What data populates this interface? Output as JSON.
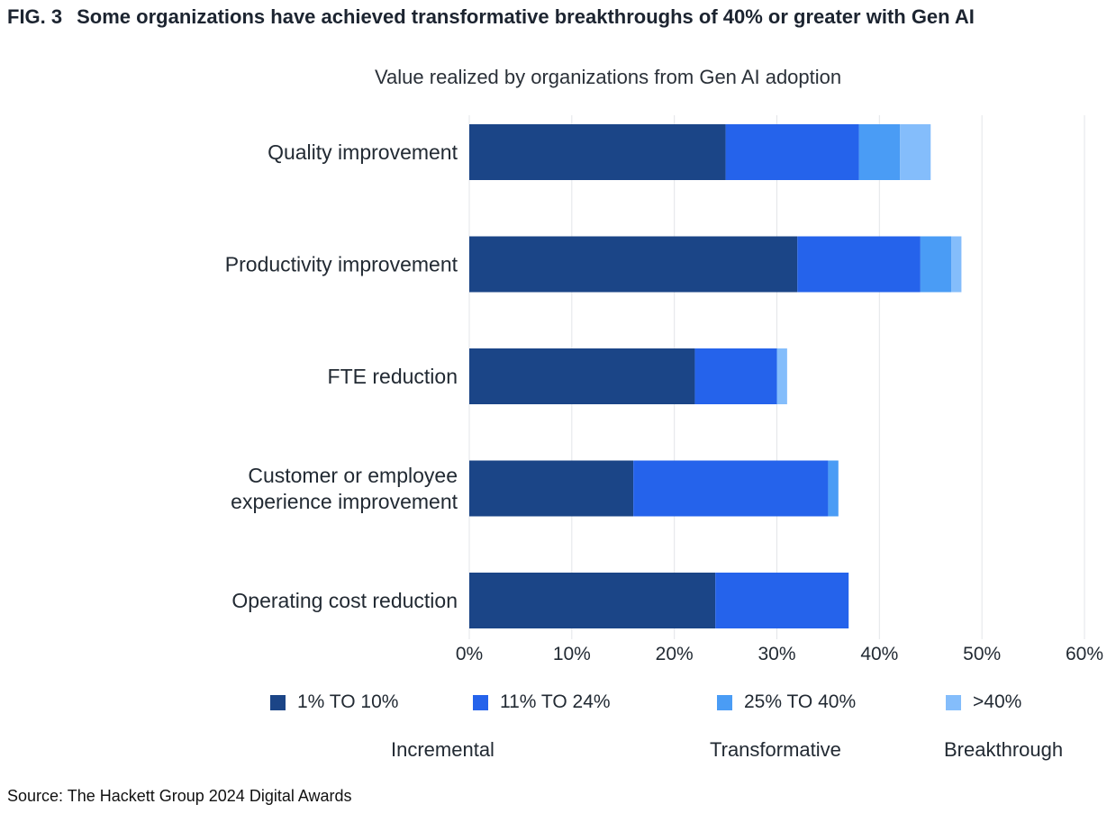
{
  "figure": {
    "label": "FIG. 3",
    "title": "Some organizations have achieved transformative breakthroughs of 40% or greater with Gen AI"
  },
  "chart_data": {
    "type": "bar",
    "orientation": "horizontal",
    "stacked": true,
    "title": "Value realized by organizations from Gen AI adoption",
    "xlabel": "",
    "ylabel": "",
    "xlim": [
      0,
      60
    ],
    "ticks": [
      "0%",
      "10%",
      "20%",
      "30%",
      "40%",
      "50%",
      "60%"
    ],
    "tick_values": [
      0,
      10,
      20,
      30,
      40,
      50,
      60
    ],
    "grid": true,
    "categories": [
      [
        "Quality improvement"
      ],
      [
        "Productivity improvement"
      ],
      [
        "FTE reduction"
      ],
      [
        "Customer or employee",
        "experience improvement"
      ],
      [
        "Operating cost reduction"
      ]
    ],
    "series": [
      {
        "name": "1% TO 10%",
        "color": "#1b4587",
        "values": [
          25,
          32,
          22,
          16,
          24
        ]
      },
      {
        "name": "11% TO 24%",
        "color": "#2563eb",
        "values": [
          13,
          12,
          8,
          19,
          13
        ]
      },
      {
        "name": "25% TO 40%",
        "color": "#4a9cf5",
        "values": [
          4,
          3,
          0,
          1,
          0
        ]
      },
      {
        "name": ">40%",
        "color": "#84bdfb",
        "values": [
          3,
          1,
          1,
          0,
          0
        ]
      }
    ],
    "legend_position": "bottom",
    "group_labels": [
      "Incremental",
      "Transformative",
      "Breakthrough"
    ]
  },
  "source": "Source: The Hackett Group 2024 Digital Awards"
}
